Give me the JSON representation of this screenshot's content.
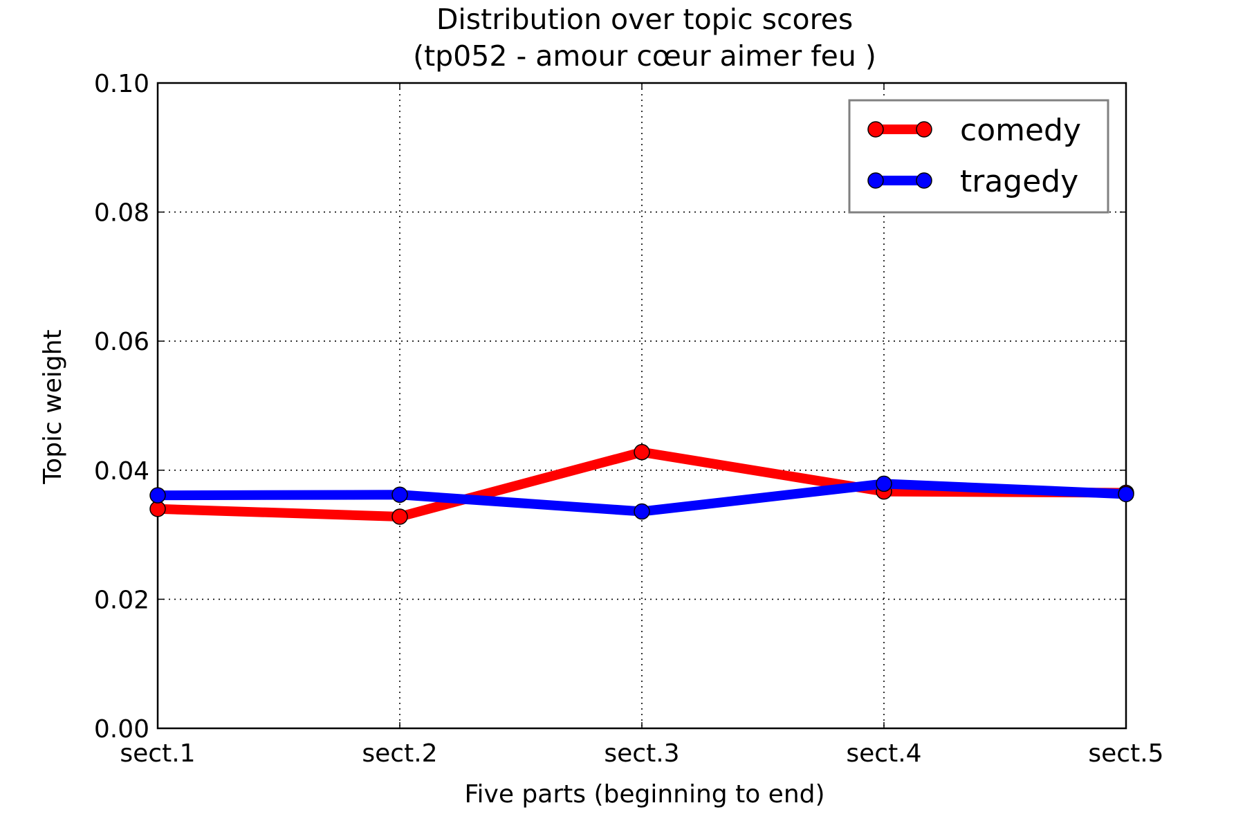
{
  "chart_data": {
    "type": "line",
    "title": "Distribution over topic scores",
    "subtitle": "(tp052 - amour cœur aimer feu )",
    "xlabel": "Five parts (beginning to end)",
    "ylabel": "Topic weight",
    "categories": [
      "sect.1",
      "sect.2",
      "sect.3",
      "sect.4",
      "sect.5"
    ],
    "ylim": [
      0.0,
      0.1
    ],
    "yticks": [
      "0.00",
      "0.02",
      "0.04",
      "0.06",
      "0.08",
      "0.10"
    ],
    "grid": true,
    "legend_position": "top-right",
    "series": [
      {
        "name": "comedy",
        "color": "#ff0000",
        "values": [
          0.034,
          0.0328,
          0.0428,
          0.0367,
          0.0365
        ]
      },
      {
        "name": "tragedy",
        "color": "#0000ff",
        "values": [
          0.0361,
          0.0362,
          0.0336,
          0.0379,
          0.0363
        ]
      }
    ]
  }
}
